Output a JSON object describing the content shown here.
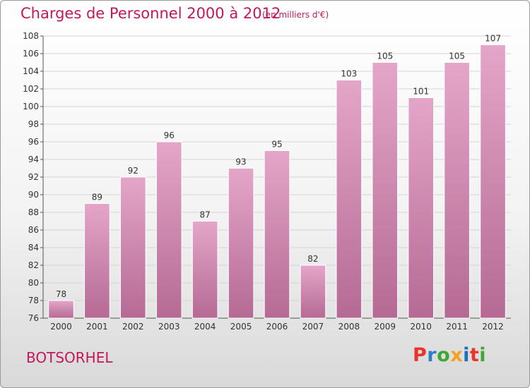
{
  "header": {
    "title": "Charges de Personnel 2000 à 2012",
    "subtitle": "(en milliers d'€)"
  },
  "footer": {
    "commune": "BOTSORHEL",
    "logo_text": "Proxiti",
    "logo_colors": [
      "#e8352b",
      "#2e7fc4",
      "#3fa535",
      "#f4a11d",
      "#1d6fb8",
      "#e8352b",
      "#3fa535"
    ]
  },
  "colors": {
    "accent": "#c2185b",
    "bar_top": "#e4a6c8",
    "bar_bottom": "#b56a94",
    "bar_edge": "#ffffff"
  },
  "chart_data": {
    "type": "bar",
    "title": "Charges de Personnel 2000 à 2012",
    "subtitle": "(en milliers d'€)",
    "categories": [
      "2000",
      "2001",
      "2002",
      "2003",
      "2004",
      "2005",
      "2006",
      "2007",
      "2008",
      "2009",
      "2010",
      "2011",
      "2012"
    ],
    "values": [
      78,
      89,
      92,
      96,
      87,
      93,
      95,
      82,
      103,
      105,
      101,
      105,
      107
    ],
    "ylim": [
      76,
      108
    ],
    "yticks": [
      76,
      78,
      80,
      82,
      84,
      86,
      88,
      90,
      92,
      94,
      96,
      98,
      100,
      102,
      104,
      106,
      108
    ],
    "grid": true,
    "xlabel": "",
    "ylabel": ""
  }
}
